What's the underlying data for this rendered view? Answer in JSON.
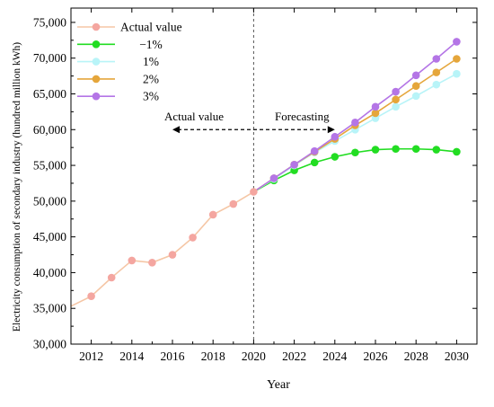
{
  "chart_data": {
    "type": "line",
    "title": "",
    "xlabel": "Year",
    "ylabel": "Electricity consumption of secondary industry (hundred million kWh)",
    "xlim": [
      2011,
      2031
    ],
    "ylim": [
      30000,
      77000
    ],
    "x_ticks": [
      2012,
      2014,
      2016,
      2018,
      2020,
      2022,
      2024,
      2026,
      2028,
      2030
    ],
    "x_tick_labels": [
      "2012",
      "2014",
      "2016",
      "2018",
      "2020",
      "2022",
      "2024",
      "2026",
      "2028",
      "2030"
    ],
    "y_ticks": [
      30000,
      35000,
      40000,
      45000,
      50000,
      55000,
      60000,
      65000,
      70000,
      75000
    ],
    "y_tick_labels": [
      "30,000",
      "35,000",
      "40,000",
      "45,000",
      "50,000",
      "55,000",
      "60,000",
      "65,000",
      "70,000",
      "75,000"
    ],
    "grid": false,
    "legend": {
      "position": "top-left"
    },
    "series": [
      {
        "name": "Actual value",
        "color": "#f4a6a0",
        "line_color": "#f5c6a5",
        "x": [
          2011,
          2012,
          2013,
          2014,
          2015,
          2016,
          2017,
          2018,
          2019,
          2020
        ],
        "y": [
          35300,
          36700,
          39300,
          41700,
          41400,
          42500,
          44900,
          48100,
          49600,
          51300
        ]
      },
      {
        "name": "−1%",
        "color": "#22dd22",
        "line_color": "#22dd22",
        "x": [
          2020,
          2021,
          2022,
          2023,
          2024,
          2025,
          2026,
          2027,
          2028,
          2029,
          2030
        ],
        "y": [
          51300,
          52900,
          54300,
          55400,
          56200,
          56800,
          57200,
          57300,
          57300,
          57200,
          56900
        ]
      },
      {
        "name": "1%",
        "color": "#b8f4f8",
        "line_color": "#b8f4f8",
        "x": [
          2020,
          2021,
          2022,
          2023,
          2024,
          2025,
          2026,
          2027,
          2028,
          2029,
          2030
        ],
        "y": [
          51300,
          53100,
          55000,
          56800,
          58400,
          60000,
          61600,
          63200,
          64700,
          66300,
          67800
        ]
      },
      {
        "name": "2%",
        "color": "#e5a63b",
        "line_color": "#e5a63b",
        "x": [
          2020,
          2021,
          2022,
          2023,
          2024,
          2025,
          2026,
          2027,
          2028,
          2029,
          2030
        ],
        "y": [
          51300,
          53200,
          55100,
          56900,
          58700,
          60600,
          62300,
          64200,
          66100,
          68000,
          69900
        ]
      },
      {
        "name": "3%",
        "color": "#b475e6",
        "line_color": "#b475e6",
        "x": [
          2020,
          2021,
          2022,
          2023,
          2024,
          2025,
          2026,
          2027,
          2028,
          2029,
          2030
        ],
        "y": [
          51300,
          53200,
          55100,
          57000,
          59000,
          61000,
          63200,
          65300,
          67600,
          69900,
          72300
        ]
      }
    ],
    "annotations": [
      {
        "text": "Actual value"
      },
      {
        "text": "Forecasting"
      }
    ],
    "divider_x": 2020,
    "arrow": {
      "from_x": 2016,
      "to_x": 2024,
      "y": 60000
    }
  }
}
